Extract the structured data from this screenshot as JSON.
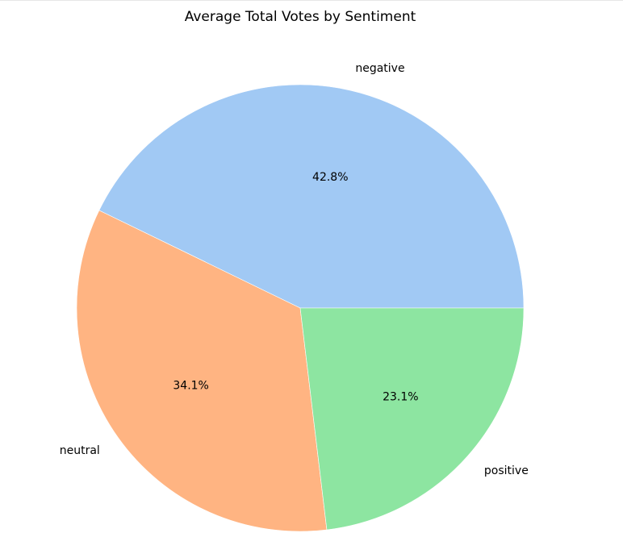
{
  "chart_data": {
    "type": "pie",
    "title": "Average Total Votes by Sentiment",
    "categories": [
      "negative",
      "neutral",
      "positive"
    ],
    "values": [
      42.8,
      34.1,
      23.1
    ],
    "value_labels": [
      "42.8%",
      "34.1%",
      "23.1%"
    ],
    "colors": [
      "#a1c9f4",
      "#ffb482",
      "#8de5a1"
    ],
    "start_angle_deg": 0,
    "direction": "counterclockwise",
    "legend": "none"
  }
}
